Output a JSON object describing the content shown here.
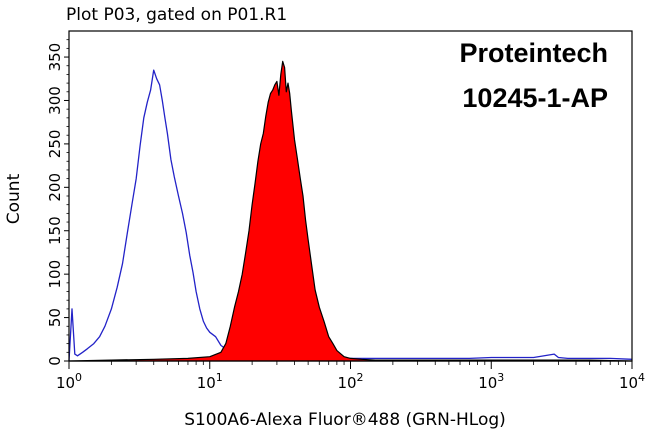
{
  "chart_data": {
    "type": "area",
    "title": "Plot P03, gated on P01.R1",
    "xlabel": "S100A6-Alexa Fluor®488 (GRN-HLog)",
    "ylabel": "Count",
    "x_scale": "log",
    "xlim": [
      1,
      10000
    ],
    "ylim": [
      0,
      380
    ],
    "x_tick_labels": [
      {
        "base": "10",
        "exp": "0",
        "value": 1
      },
      {
        "base": "10",
        "exp": "1",
        "value": 10
      },
      {
        "base": "10",
        "exp": "2",
        "value": 100
      },
      {
        "base": "10",
        "exp": "3",
        "value": 1000
      },
      {
        "base": "10",
        "exp": "4",
        "value": 10000
      }
    ],
    "y_ticks": [
      0,
      50,
      100,
      150,
      200,
      250,
      300,
      350
    ],
    "annotations": [
      "Proteintech",
      "10245-1-AP"
    ],
    "series": [
      {
        "style": "outline",
        "color": "#2323c8",
        "x": [
          1.0,
          1.05,
          1.1,
          1.15,
          1.25,
          1.35,
          1.5,
          1.65,
          1.8,
          2.0,
          2.2,
          2.4,
          2.6,
          2.8,
          3.0,
          3.2,
          3.4,
          3.6,
          3.8,
          4.0,
          4.2,
          4.4,
          4.6,
          4.8,
          5.0,
          5.3,
          5.6,
          6.0,
          6.4,
          6.8,
          7.2,
          7.6,
          8.0,
          8.5,
          9.0,
          9.5,
          10.0,
          11.0,
          12.0,
          14.0,
          17.0,
          20.0,
          30.0,
          50.0,
          100.0,
          200.0,
          400.0,
          700.0,
          1000.0,
          2000.0,
          2800.0,
          3000.0,
          3500.0,
          5000.0,
          7000.0,
          10000.0
        ],
        "y": [
          0,
          60,
          8,
          6,
          10,
          14,
          20,
          28,
          40,
          60,
          85,
          112,
          148,
          180,
          210,
          248,
          280,
          298,
          312,
          335,
          325,
          318,
          300,
          280,
          262,
          232,
          212,
          190,
          170,
          148,
          122,
          102,
          80,
          60,
          46,
          38,
          33,
          28,
          18,
          10,
          5,
          4,
          3,
          3,
          3,
          3,
          3,
          3,
          4,
          4,
          8,
          4,
          3,
          3,
          3,
          2
        ]
      },
      {
        "style": "filled",
        "color": "#ff0000",
        "outline_color": "#000000",
        "x": [
          1.0,
          2.0,
          4.0,
          7.0,
          10.0,
          12.0,
          13.0,
          14.0,
          15.0,
          16.0,
          17.0,
          18.0,
          19.0,
          20.0,
          21.0,
          22.0,
          23.0,
          24.0,
          25.0,
          26.0,
          27.0,
          28.0,
          29.0,
          30.0,
          31.0,
          32.0,
          33.0,
          34.0,
          35.0,
          36.0,
          37.0,
          38.0,
          40.0,
          42.0,
          44.0,
          46.0,
          48.0,
          50.0,
          53.0,
          56.0,
          60.0,
          65.0,
          70.0,
          75.0,
          80.0,
          90.0,
          100.0,
          120.0,
          150.0,
          200.0,
          300.0,
          500.0,
          1000.0,
          2000.0,
          5000.0,
          10000.0
        ],
        "y": [
          0,
          1,
          2,
          3,
          5,
          10,
          20,
          40,
          62,
          80,
          100,
          125,
          150,
          180,
          205,
          230,
          250,
          262,
          282,
          298,
          308,
          312,
          318,
          322,
          306,
          330,
          345,
          338,
          310,
          320,
          308,
          288,
          255,
          232,
          210,
          190,
          162,
          140,
          110,
          82,
          62,
          45,
          28,
          20,
          12,
          5,
          3,
          2,
          1,
          1,
          1,
          1,
          1,
          1,
          1,
          0
        ]
      }
    ]
  }
}
